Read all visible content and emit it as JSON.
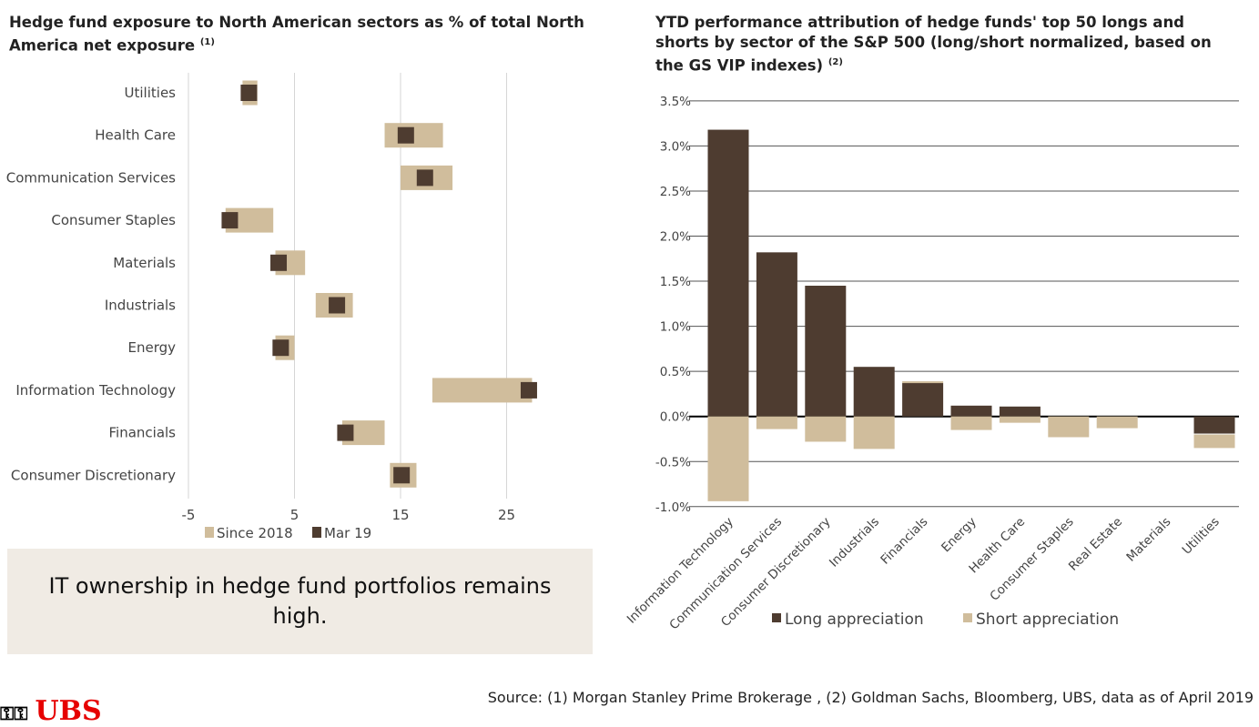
{
  "left": {
    "title": "Hedge fund exposure to North American sectors as % of total North America net exposure",
    "title_note": "(1)"
  },
  "right": {
    "title": "YTD performance attribution of hedge funds' top 50 longs and shorts by sector of the S&P 500 (long/short normalized, based on the GS VIP indexes)",
    "title_note": "(2)"
  },
  "callout": "IT ownership in hedge fund portfolios remains high.",
  "source": "Source: (1) Morgan Stanley Prime Brokerage , (2) Goldman Sachs, Bloomberg, UBS, data as of April 2019",
  "logo": "UBS",
  "colors": {
    "dark": "#4e3c30",
    "light": "#d0bd9c"
  },
  "chart_data": [
    {
      "type": "range-dot",
      "categories": [
        "Utilities",
        "Health Care",
        "Communication Services",
        "Consumer Staples",
        "Materials",
        "Industrials",
        "Energy",
        "Information Technology",
        "Financials",
        "Consumer Discretionary"
      ],
      "series": [
        {
          "name": "Since 2018",
          "ranges": [
            [
              0.1,
              1.5
            ],
            [
              13.5,
              19.0
            ],
            [
              15.0,
              19.9
            ],
            [
              -1.5,
              3.0
            ],
            [
              3.2,
              6.0
            ],
            [
              7.0,
              10.5
            ],
            [
              3.2,
              5.0
            ],
            [
              18.0,
              27.4
            ],
            [
              9.5,
              13.5
            ],
            [
              14.0,
              16.5
            ]
          ]
        },
        {
          "name": "Mar 19",
          "values": [
            0.7,
            15.5,
            17.3,
            -1.1,
            3.5,
            9.0,
            3.7,
            27.1,
            9.8,
            15.1
          ]
        }
      ],
      "xticks": [
        "-5",
        "5",
        "15",
        "25"
      ],
      "xlim": [
        -5,
        28
      ],
      "grid": true,
      "legend": "bottom"
    },
    {
      "type": "bar",
      "stacked": true,
      "categories": [
        "Information Technology",
        "Communication Services",
        "Consumer Discretionary",
        "Industrials",
        "Financials",
        "Energy",
        "Health Care",
        "Consumer Staples",
        "Real Estate",
        "Materials",
        "Utilities"
      ],
      "series": [
        {
          "name": "Long appreciation",
          "values": [
            3.18,
            1.82,
            1.45,
            0.55,
            0.37,
            0.12,
            0.11,
            0.0,
            0.0,
            0.0,
            -0.19
          ]
        },
        {
          "name": "Short appreciation",
          "values": [
            -0.94,
            -0.14,
            -0.28,
            -0.36,
            0.02,
            -0.15,
            -0.07,
            -0.23,
            -0.13,
            0.0,
            -0.15
          ]
        }
      ],
      "yticks": [
        "3.5%",
        "3.0%",
        "2.5%",
        "2.0%",
        "1.5%",
        "1.0%",
        "0.5%",
        "0.0%",
        "-0.5%",
        "-1.0%"
      ],
      "ylim": [
        -1.0,
        3.5
      ],
      "grid": true,
      "legend": "bottom"
    }
  ]
}
